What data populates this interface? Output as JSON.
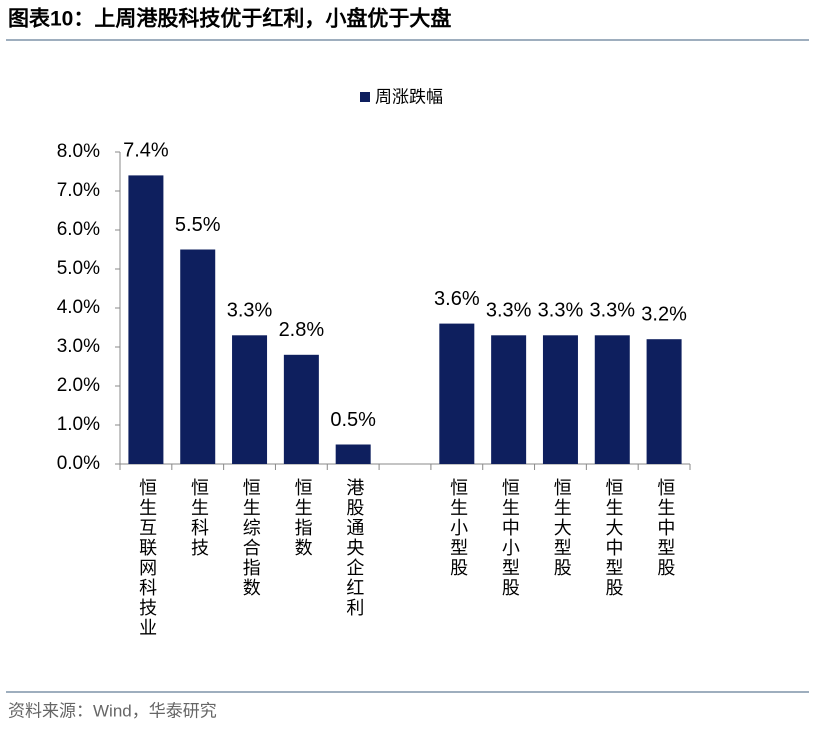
{
  "chart_data": {
    "type": "bar",
    "title": "图表10：上周港股科技优于红利，小盘优于大盘",
    "source": "资料来源：Wind，华泰研究",
    "categories": [
      "恒生互联网科技业",
      "恒生科技",
      "恒生综合指数",
      "恒生指数",
      "港股通央企红利",
      null,
      "恒生小型股",
      "恒生中小型股",
      "恒生大型股",
      "恒生大中型股",
      "恒生中型股"
    ],
    "series": [
      {
        "name": "周涨跌幅",
        "color": "#0e1f5e",
        "values": [
          7.4,
          5.5,
          3.3,
          2.8,
          0.5,
          null,
          3.6,
          3.3,
          3.3,
          3.3,
          3.2
        ],
        "value_labels": [
          "7.4%",
          "5.5%",
          "3.3%",
          "2.8%",
          "0.5%",
          null,
          "3.6%",
          "3.3%",
          "3.3%",
          "3.3%",
          "3.2%"
        ]
      }
    ],
    "ylim": [
      0,
      8
    ],
    "yticks": [
      {
        "value": 0,
        "label": "0.0%"
      },
      {
        "value": 1,
        "label": "1.0%"
      },
      {
        "value": 2,
        "label": "2.0%"
      },
      {
        "value": 3,
        "label": "3.0%"
      },
      {
        "value": 4,
        "label": "4.0%"
      },
      {
        "value": 5,
        "label": "5.0%"
      },
      {
        "value": 6,
        "label": "6.0%"
      },
      {
        "value": 7,
        "label": "7.0%"
      },
      {
        "value": 8,
        "label": "8.0%"
      }
    ],
    "legend": "top"
  }
}
